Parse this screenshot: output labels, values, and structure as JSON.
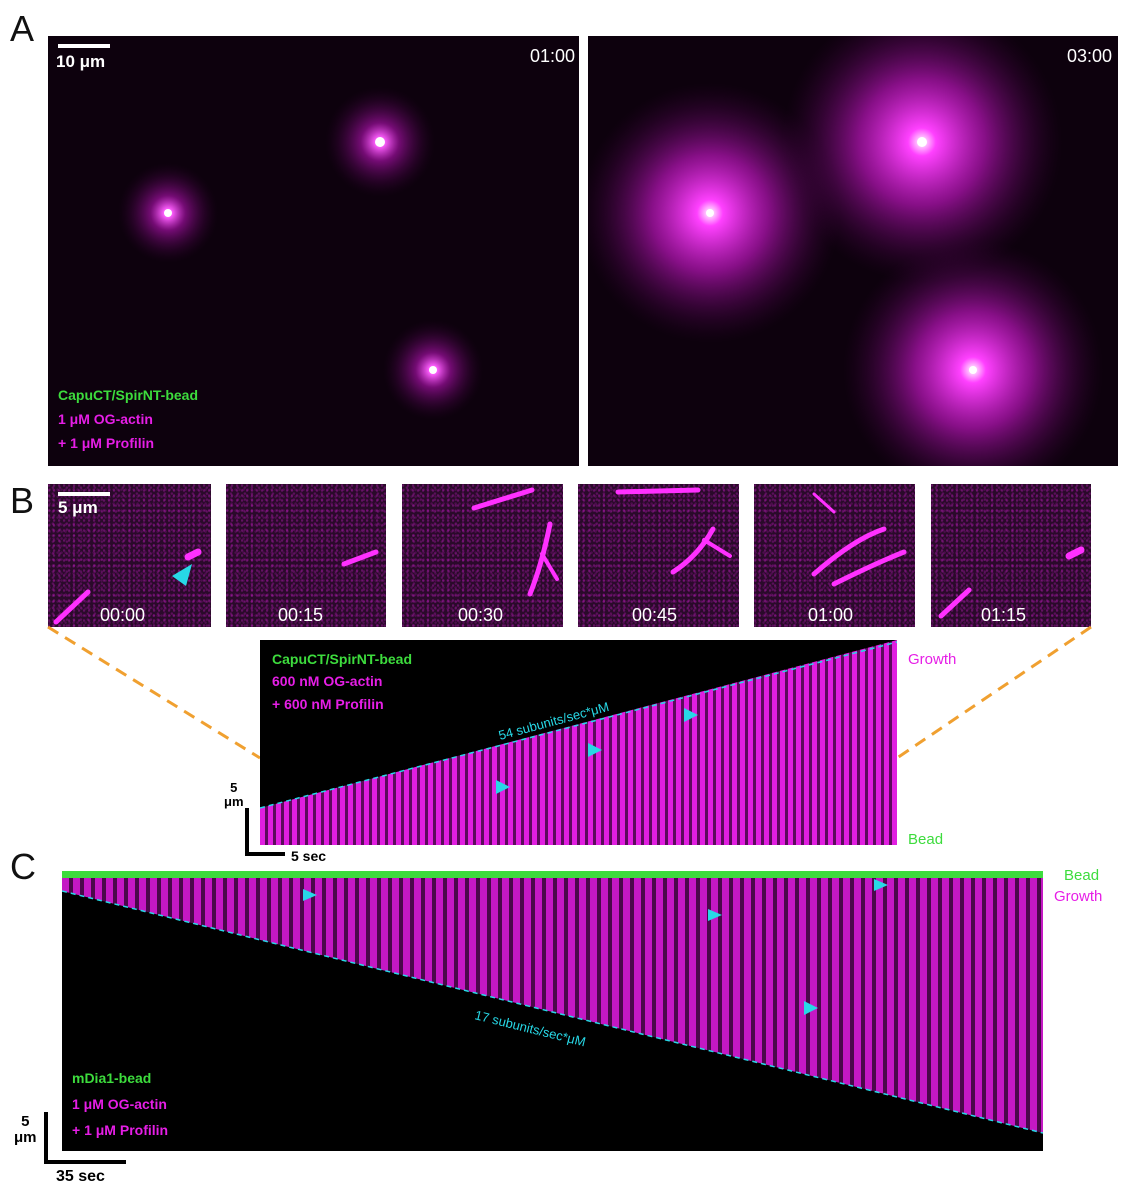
{
  "panels": {
    "a": {
      "letter": "A"
    },
    "b": {
      "letter": "B"
    },
    "c": {
      "letter": "C"
    }
  },
  "panel_a": {
    "left": {
      "time": "01:00",
      "scalebar": "10 μm"
    },
    "right": {
      "time": "03:00"
    },
    "legend": [
      "CapuCT/SpirNT-bead",
      "1 μM OG-actin",
      "+ 1 μM Profilin"
    ]
  },
  "panel_b": {
    "scalebar": "5 μm",
    "frames": [
      "00:00",
      "00:15",
      "00:30",
      "00:45",
      "01:00",
      "01:15"
    ],
    "kymo": {
      "legend": [
        "CapuCT/SpirNT-bead",
        "600 nM OG-actin",
        "+ 600 nM Profilin"
      ],
      "rate": "54 subunits/sec*μM",
      "top_label": "Growth",
      "bottom_label": "Bead",
      "scale_y": "5\nμm",
      "scale_x": "5 sec"
    }
  },
  "panel_c": {
    "legend": [
      "mDia1-bead",
      "1 μM OG-actin",
      "+ 1 μM Profilin"
    ],
    "rate": "17 subunits/sec*μM",
    "bead_label": "Bead",
    "growth_label": "Growth",
    "scale_y": "5\nμm",
    "scale_x": "35 sec"
  },
  "colors": {
    "green": "#3ddc3d",
    "magenta": "#e61ee6",
    "cyan": "#27d8e6",
    "orange": "#f0a030"
  }
}
